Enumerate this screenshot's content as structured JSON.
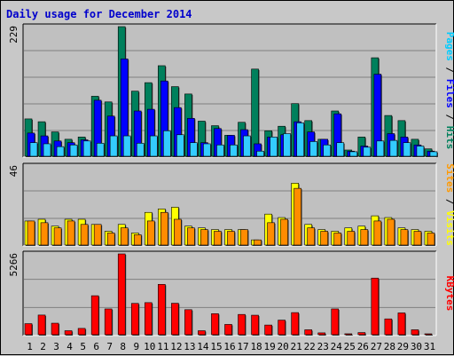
{
  "chart_data": {
    "type": "bar",
    "title": "Daily usage for December 2014",
    "categories": [
      "1",
      "2",
      "3",
      "4",
      "5",
      "6",
      "7",
      "8",
      "9",
      "10",
      "11",
      "12",
      "13",
      "14",
      "15",
      "16",
      "17",
      "18",
      "19",
      "20",
      "21",
      "22",
      "23",
      "24",
      "25",
      "26",
      "27",
      "28",
      "29",
      "30",
      "31"
    ],
    "weekend_days": [
      "6",
      "7",
      "13",
      "14",
      "20",
      "21",
      "27",
      "28"
    ],
    "panels": [
      {
        "name": "hits-files-pages",
        "ymax": 229,
        "ymax_label": "229",
        "legend": [
          "Pages",
          "Files",
          "Hits"
        ],
        "legend_colors": [
          "#00ccff",
          "#0000ff",
          "#00805c"
        ],
        "series": [
          {
            "name": "Hits",
            "color": "#00805c",
            "values": [
              66,
              61,
              43,
              30,
              34,
              106,
              96,
              229,
              115,
              130,
              160,
              123,
              110,
              62,
              54,
              37,
              60,
              154,
              45,
              53,
              93,
              63,
              30,
              80,
              11,
              34,
              174,
              72,
              63,
              30,
              13
            ]
          },
          {
            "name": "Files",
            "color": "#0000ff",
            "values": [
              41,
              36,
              27,
              24,
              29,
              99,
              71,
              172,
              80,
              83,
              133,
              86,
              67,
              24,
              49,
              37,
              47,
              22,
              34,
              38,
              61,
              43,
              30,
              75,
              9,
              18,
              145,
              40,
              34,
              20,
              9
            ]
          },
          {
            "name": "Pages",
            "color": "#33ccff",
            "values": [
              24,
              22,
              17,
              20,
              27,
              23,
              36,
              36,
              23,
              36,
              45,
              38,
              24,
              22,
              20,
              20,
              36,
              9,
              34,
              40,
              59,
              26,
              20,
              24,
              8,
              16,
              27,
              28,
              24,
              18,
              8
            ]
          }
        ]
      },
      {
        "name": "visits-sites",
        "ymax": 46,
        "ymax_label": "46",
        "legend": [
          "Sites",
          "Visits"
        ],
        "legend_colors": [
          "#ff9900",
          "#ffff00"
        ],
        "series": [
          {
            "name": "Visits",
            "color": "#ffff00",
            "values": [
              14,
              15,
              11,
              15,
              15,
              12,
              8,
              12,
              7,
              19,
              21,
              22,
              11,
              10,
              9,
              9,
              9,
              3,
              18,
              16,
              36,
              12,
              9,
              8,
              10,
              11,
              17,
              16,
              10,
              9,
              8
            ]
          },
          {
            "name": "Sites",
            "color": "#ff8c00",
            "values": [
              14,
              13,
              10,
              14,
              12,
              12,
              7,
              10,
              6,
              14,
              19,
              15,
              10,
              9,
              8,
              8,
              9,
              3,
              13,
              15,
              33,
              10,
              8,
              7,
              8,
              9,
              14,
              15,
              9,
              8,
              7
            ]
          }
        ]
      },
      {
        "name": "kbytes",
        "ymax": 5266,
        "ymax_label": "5266",
        "legend": [
          "KBytes"
        ],
        "legend_colors": [
          "#ff0000"
        ],
        "series": [
          {
            "name": "KBytes",
            "color": "#ff0000",
            "values": [
              720,
              1280,
              750,
              260,
              410,
              2540,
              1680,
              5266,
              2040,
              2090,
              3280,
              2050,
              1630,
              260,
              1370,
              670,
              1320,
              1270,
              630,
              950,
              1440,
              320,
              120,
              1680,
              60,
              140,
              3690,
              1030,
              1420,
              320,
              40
            ]
          }
        ]
      }
    ]
  }
}
